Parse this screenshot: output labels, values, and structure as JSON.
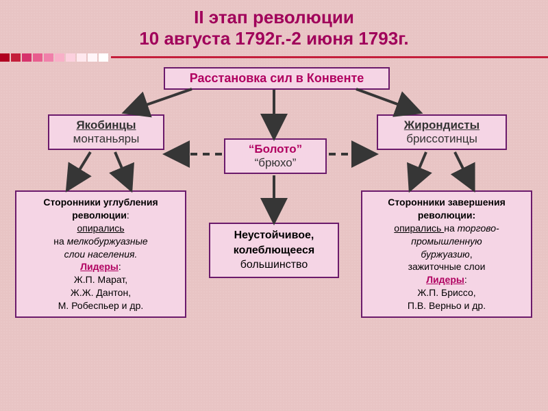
{
  "title": {
    "line1": "II этап революции",
    "line2": "10 августа 1792г.-2 июня 1793г."
  },
  "divider": {
    "line_color": "#c41e3a",
    "box_colors": [
      "#b00020",
      "#c41e3a",
      "#d6336c",
      "#e85d8e",
      "#f080aa",
      "#f8b0c8",
      "#fcd0de",
      "#ffe8ee",
      "#fff5f8",
      "#ffffff"
    ]
  },
  "boxes": {
    "root": "Расстановка сил в Конвенте",
    "left_faction": {
      "name": "Якобинцы",
      "alt": "монтаньяры"
    },
    "center_faction": {
      "name": "“Болото”",
      "alt": "“брюхо”"
    },
    "right_faction": {
      "name": "Жирондисты",
      "alt": "бриссотинцы"
    }
  },
  "details": {
    "left": {
      "l1a": "Сторонники углубления",
      "l1b": "революции",
      "colon": ":",
      "l2": "опирались",
      "l3_pre": "на",
      "l3a": " мелкобуржуазные",
      "l3b": "слои населения.",
      "leaders_label": "Лидеры",
      "l5": "Ж.П. Марат,",
      "l6": "Ж.Ж. Дантон,",
      "l7": "М. Робеспьер и др."
    },
    "center": {
      "l1": "Неустойчивое,",
      "l2": "колеблющееся",
      "l3": "большинство"
    },
    "right": {
      "l1a": "Сторонники завершения",
      "l1b": "революции:",
      "l2": "опирались ",
      "l2_post": "на",
      "l3a": " торгово-",
      "l3b": "промышленную",
      "l3c": "буржуазию",
      "comma": ",",
      "l4": "зажиточные слои",
      "leaders_label": "Лидеры",
      "l6": "Ж.П. Бриссо,",
      "l7": "П.В. Верньо и др."
    }
  },
  "style": {
    "title_color": "#a0005a",
    "box_bg": "#f5d5e5",
    "box_border": "#6b1a6b",
    "arrow_color": "#363636",
    "dashed_color": "#363636"
  }
}
